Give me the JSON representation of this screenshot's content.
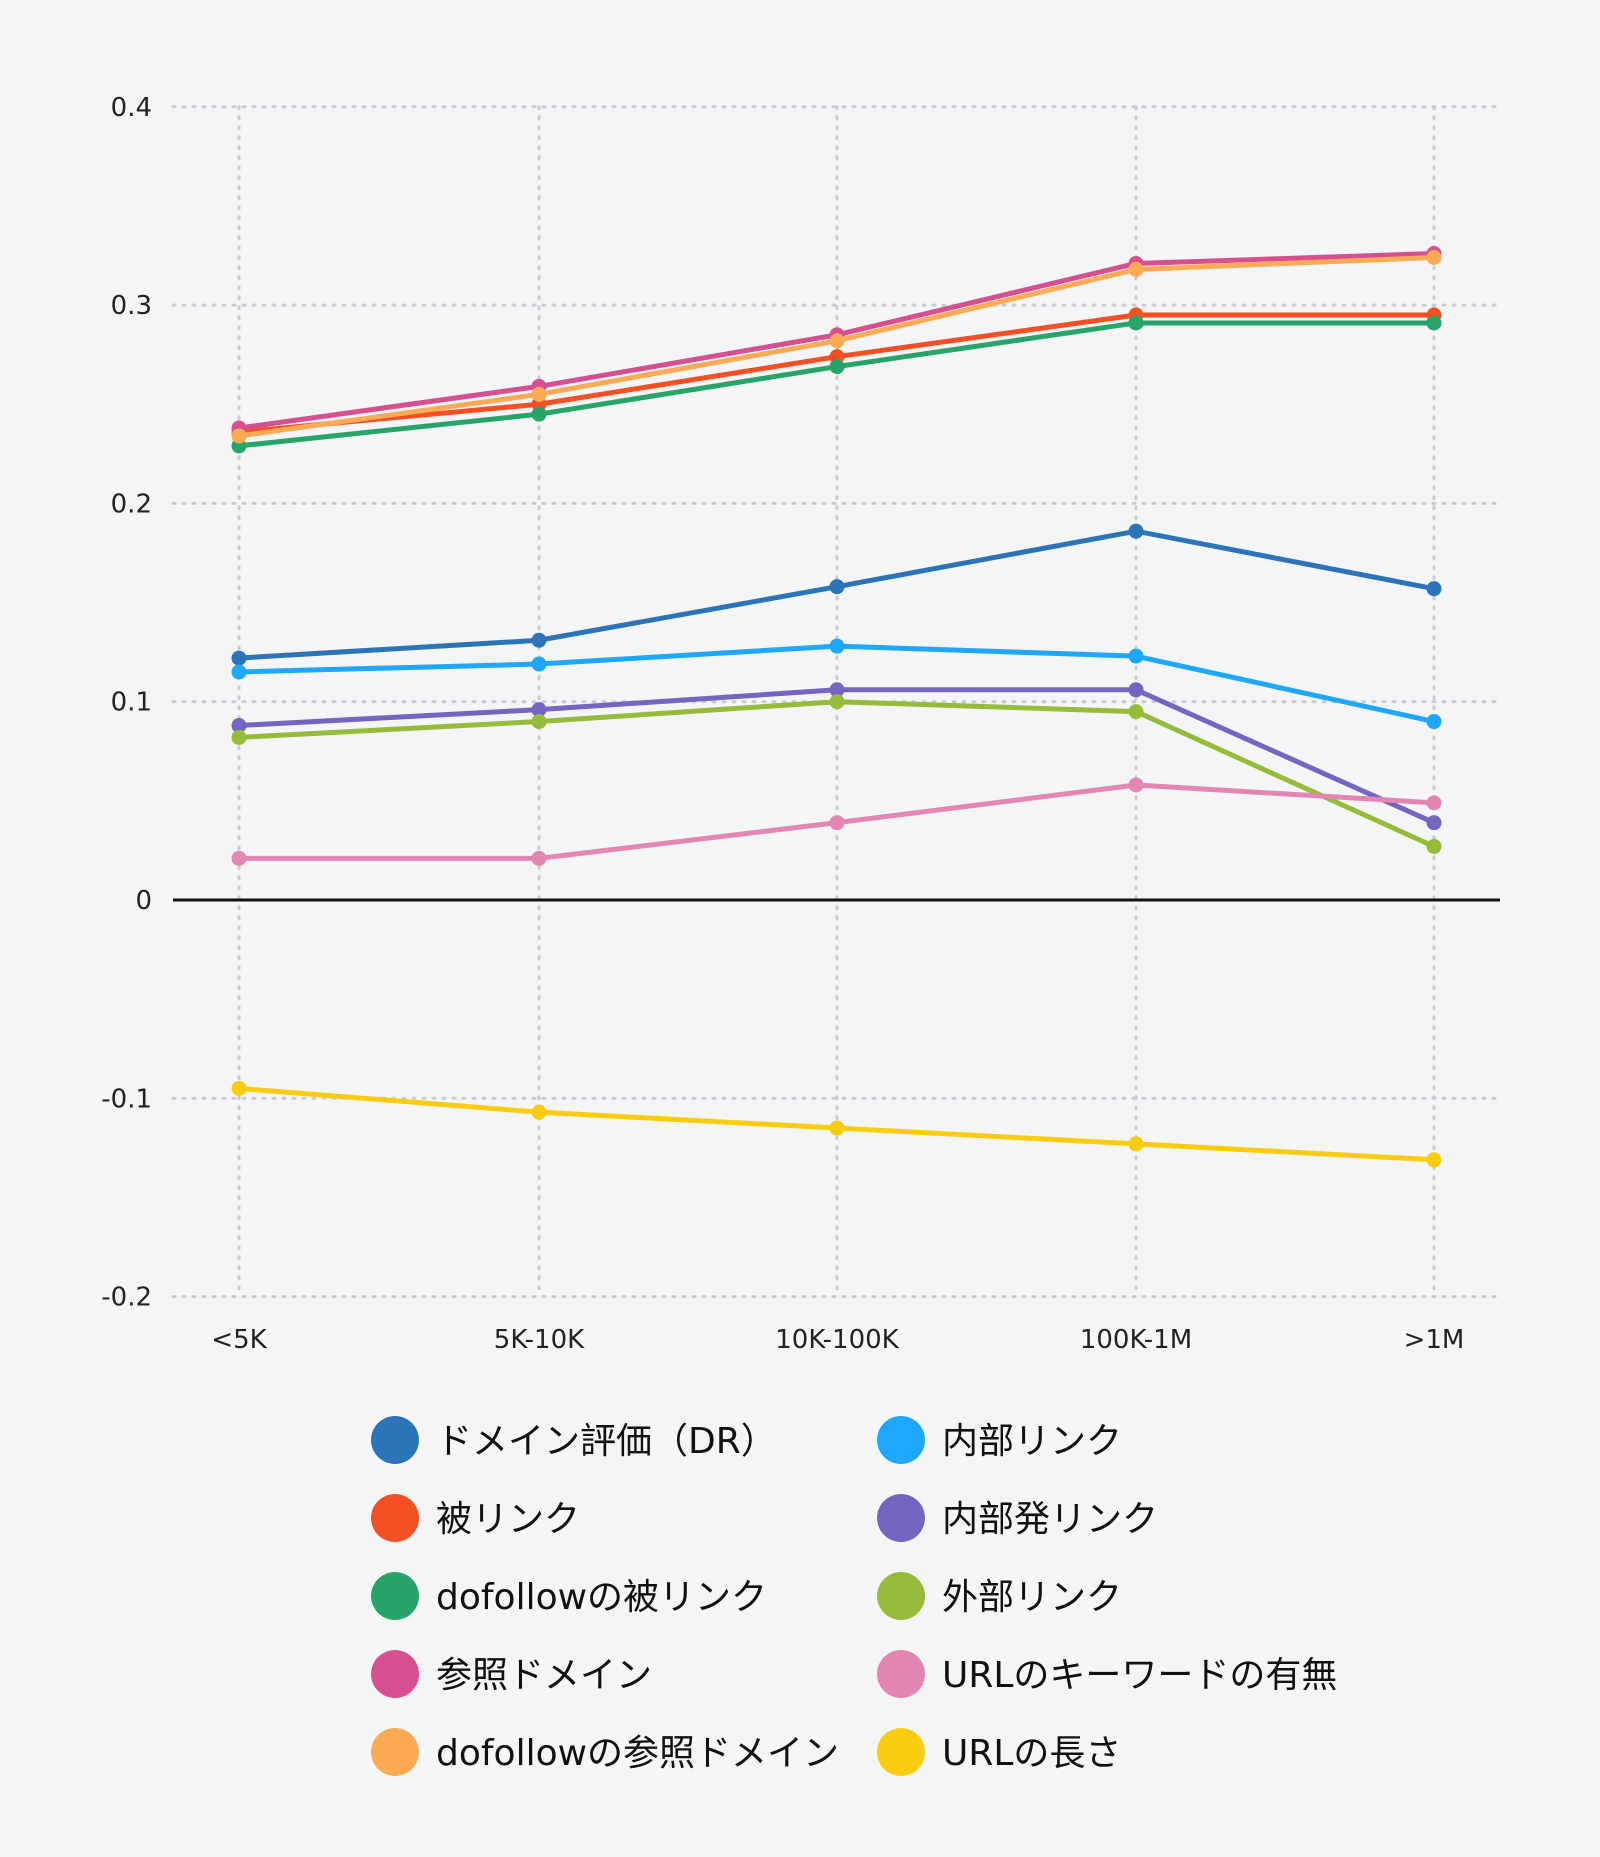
{
  "chart_data": {
    "type": "line",
    "title": "",
    "xlabel": "",
    "ylabel": "",
    "categories": [
      "<5K",
      "5K-10K",
      "10K-100K",
      "100K-1M",
      ">1M"
    ],
    "ylim": [
      -0.2,
      0.4
    ],
    "yticks": [
      0.4,
      0.3,
      0.2,
      0.1,
      0,
      -0.1,
      -0.2
    ],
    "ytick_labels": [
      "0.4",
      "0.3",
      "0.2",
      "0.1",
      "0",
      "-0.1",
      "-0.2"
    ],
    "grid": true,
    "legend_position": "bottom",
    "series": [
      {
        "name": "ドメイン評価（DR）",
        "color": "#2c74b8",
        "values": [
          0.122,
          0.131,
          0.158,
          0.186,
          0.157
        ]
      },
      {
        "name": "被リンク",
        "color": "#f55024",
        "values": [
          0.236,
          0.25,
          0.274,
          0.295,
          0.295
        ]
      },
      {
        "name": "dofollowの被リンク",
        "color": "#27a467",
        "values": [
          0.229,
          0.245,
          0.269,
          0.291,
          0.291
        ]
      },
      {
        "name": "参照ドメイン",
        "color": "#d64f8f",
        "values": [
          0.238,
          0.259,
          0.285,
          0.321,
          0.326
        ]
      },
      {
        "name": "dofollowの参照ドメイン",
        "color": "#fbab55",
        "values": [
          0.234,
          0.255,
          0.282,
          0.318,
          0.324
        ]
      },
      {
        "name": "内部リンク",
        "color": "#1ea7fd",
        "values": [
          0.115,
          0.119,
          0.128,
          0.123,
          0.09
        ]
      },
      {
        "name": "内部発リンク",
        "color": "#7564c0",
        "values": [
          0.088,
          0.096,
          0.106,
          0.106,
          0.039
        ]
      },
      {
        "name": "外部リンク",
        "color": "#94bb3a",
        "values": [
          0.082,
          0.09,
          0.1,
          0.095,
          0.027
        ]
      },
      {
        "name": "URLのキーワードの有無",
        "color": "#e386b2",
        "values": [
          0.021,
          0.021,
          0.039,
          0.058,
          0.049
        ]
      },
      {
        "name": "URLの長さ",
        "color": "#f9cc10",
        "values": [
          -0.095,
          -0.107,
          -0.115,
          -0.123,
          -0.131
        ]
      }
    ]
  }
}
